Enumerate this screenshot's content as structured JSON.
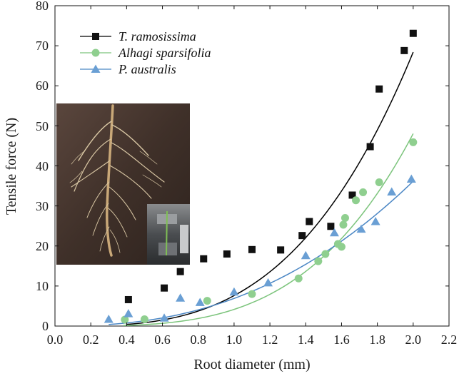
{
  "chart_data": {
    "type": "scatter",
    "xlabel": "Root diameter (mm)",
    "ylabel": "Tensile force (N)",
    "xlim": [
      0.0,
      2.2
    ],
    "ylim": [
      0,
      80
    ],
    "xticks": [
      "0.0",
      "0.2",
      "0.4",
      "0.6",
      "0.8",
      "1.0",
      "1.2",
      "1.4",
      "1.6",
      "1.8",
      "2.0",
      "2.2"
    ],
    "yticks": [
      "0",
      "10",
      "20",
      "30",
      "40",
      "50",
      "60",
      "70",
      "80"
    ],
    "grid": false,
    "legend_position": "top-left",
    "series": [
      {
        "name": "T. ramosissima",
        "marker": "square",
        "color": "#111111",
        "line_color": "#000000",
        "points": [
          [
            0.41,
            6.6
          ],
          [
            0.61,
            9.5
          ],
          [
            0.7,
            13.6
          ],
          [
            0.83,
            16.8
          ],
          [
            0.96,
            18.0
          ],
          [
            1.1,
            19.1
          ],
          [
            1.26,
            19.0
          ],
          [
            1.38,
            22.6
          ],
          [
            1.42,
            26.1
          ],
          [
            1.54,
            24.9
          ],
          [
            1.66,
            32.7
          ],
          [
            1.76,
            44.8
          ],
          [
            1.81,
            59.2
          ],
          [
            1.95,
            68.8
          ],
          [
            2.0,
            73.1
          ]
        ],
        "fit": {
          "kind": "power",
          "a": 7.6,
          "b": 3.17,
          "x_range": [
            0.4,
            2.0
          ]
        }
      },
      {
        "name": "Alhagi sparsifolia",
        "marker": "circle",
        "color": "#8fcf8f",
        "line_color": "#7cc47c",
        "points": [
          [
            0.39,
            1.6
          ],
          [
            0.5,
            1.7
          ],
          [
            0.85,
            6.3
          ],
          [
            1.1,
            8.0
          ],
          [
            1.36,
            11.9
          ],
          [
            1.47,
            16.2
          ],
          [
            1.51,
            18.0
          ],
          [
            1.58,
            20.5
          ],
          [
            1.6,
            19.8
          ],
          [
            1.61,
            25.3
          ],
          [
            1.62,
            27.0
          ],
          [
            1.68,
            31.4
          ],
          [
            1.72,
            33.4
          ],
          [
            1.81,
            35.9
          ],
          [
            2.0,
            45.9
          ]
        ],
        "fit": {
          "kind": "power",
          "a": 4.16,
          "b": 3.53,
          "x_range": [
            0.38,
            2.0
          ]
        }
      },
      {
        "name": "P. australis",
        "marker": "triangle",
        "color": "#6a9fd4",
        "line_color": "#4a86c4",
        "points": [
          [
            0.3,
            1.7
          ],
          [
            0.41,
            3.1
          ],
          [
            0.61,
            2.0
          ],
          [
            0.7,
            7.0
          ],
          [
            0.81,
            5.9
          ],
          [
            1.0,
            8.5
          ],
          [
            1.19,
            10.8
          ],
          [
            1.4,
            17.6
          ],
          [
            1.56,
            23.3
          ],
          [
            1.71,
            24.2
          ],
          [
            1.79,
            26.1
          ],
          [
            1.88,
            33.5
          ],
          [
            1.99,
            36.7
          ]
        ],
        "fit": {
          "kind": "power",
          "a": 6.9,
          "b": 2.39,
          "x_range": [
            0.3,
            2.0
          ]
        }
      }
    ]
  },
  "inset_photos": [
    {
      "subject": "excavated plant root system with fine lateral roots on dark background"
    },
    {
      "subject": "root specimen clamped in tensile testing machine"
    }
  ]
}
